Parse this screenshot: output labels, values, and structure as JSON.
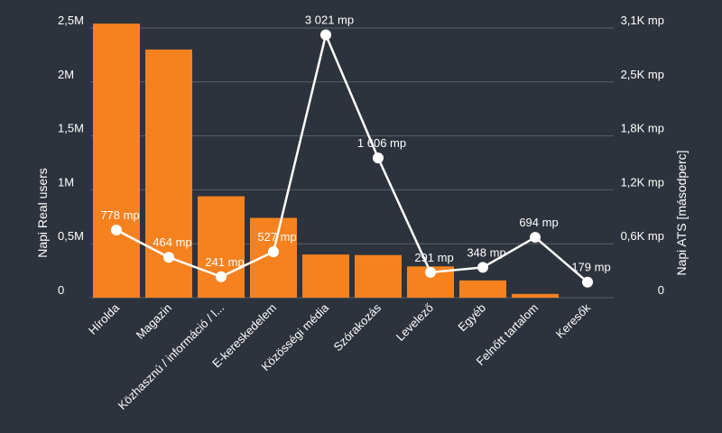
{
  "chart_data": {
    "type": "bar+line",
    "categories": [
      "Hírolda",
      "Magazin",
      "Közhasznú / információ / l...",
      "E-kereskedelem",
      "Közösségi média",
      "Szórakozás",
      "Levelező",
      "Egyéb",
      "Felnőtt tartalom",
      "Keresők"
    ],
    "series": [
      {
        "name": "Napi Real users",
        "type": "bar",
        "axis": "left",
        "values": [
          2540000,
          2300000,
          940000,
          740000,
          400000,
          395000,
          290000,
          160000,
          35000,
          0
        ]
      },
      {
        "name": "Napi ATS [másodperc]",
        "type": "line",
        "axis": "right",
        "values": [
          778,
          464,
          241,
          527,
          3021,
          1606,
          291,
          348,
          694,
          179
        ],
        "labels": [
          "778 mp",
          "464 mp",
          "241 mp",
          "527 mp",
          "3 021 mp",
          "1 606 mp",
          "291 mp",
          "348 mp",
          "694 mp",
          "179 mp"
        ]
      }
    ],
    "left_axis": {
      "title": "Napi Real users",
      "ylim": [
        0,
        2500000
      ],
      "ticks": [
        0,
        500000,
        1000000,
        1500000,
        2000000,
        2500000
      ],
      "tick_labels": [
        "0",
        "0,5M",
        "1M",
        "1,5M",
        "2M",
        "2,5M"
      ]
    },
    "right_axis": {
      "title": "Napi ATS [másodperc]",
      "ylim": [
        0,
        3100
      ],
      "ticks": [
        0,
        620,
        1240,
        1860,
        2480,
        3100
      ],
      "tick_labels": [
        "0",
        "0,6K mp",
        "1,2K mp",
        "1,8K mp",
        "2,5K mp",
        "3,1K mp"
      ]
    },
    "grid": true,
    "colors": {
      "bar": "#f5821f",
      "line": "#ffffff",
      "grid": "#5a616b",
      "background": "#2d333c"
    }
  }
}
